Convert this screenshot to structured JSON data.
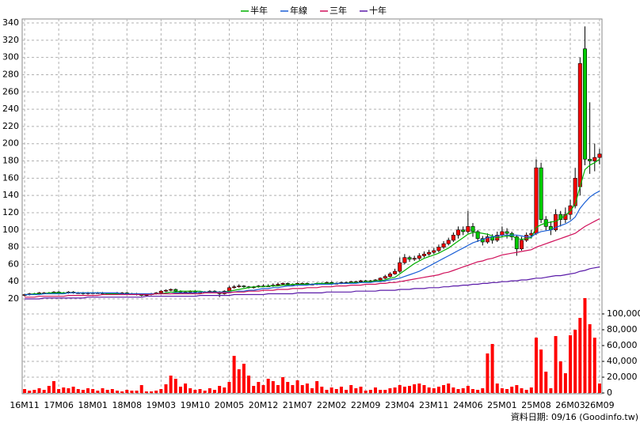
{
  "chart_data": {
    "type": "candlestick",
    "legend": "top",
    "grid": true,
    "note": "資料日期: 09/16 (Goodinfo.tw)",
    "up_color": "#ff0000",
    "down_color": "#00cc00",
    "ylim": [
      20,
      340
    ],
    "yticks": [
      20,
      40,
      60,
      80,
      100,
      120,
      140,
      160,
      180,
      200,
      220,
      240,
      260,
      280,
      300,
      320,
      340
    ],
    "categories": [
      "16M11",
      null,
      null,
      null,
      null,
      null,
      null,
      "17M06",
      null,
      null,
      null,
      null,
      null,
      null,
      "18M01",
      null,
      null,
      null,
      null,
      null,
      null,
      "18M08",
      null,
      null,
      null,
      null,
      null,
      null,
      "19M03",
      null,
      null,
      null,
      null,
      null,
      null,
      "19M10",
      null,
      null,
      null,
      null,
      null,
      null,
      "20M05",
      null,
      null,
      null,
      null,
      null,
      null,
      "20M12",
      null,
      null,
      null,
      null,
      null,
      null,
      "21M07",
      null,
      null,
      null,
      null,
      null,
      null,
      "22M02",
      null,
      null,
      null,
      null,
      null,
      null,
      "22M09",
      null,
      null,
      null,
      null,
      null,
      null,
      "23M04",
      null,
      null,
      null,
      null,
      null,
      null,
      "23M11",
      null,
      null,
      null,
      null,
      null,
      null,
      "24M06",
      null,
      null,
      null,
      null,
      null,
      null,
      "25M01",
      null,
      null,
      null,
      null,
      null,
      null,
      "25M08",
      null,
      null,
      null,
      null,
      null,
      null,
      "26M03",
      null,
      null,
      null,
      null,
      null,
      "26M09"
    ],
    "open": [
      24,
      25,
      26,
      26,
      27,
      27,
      27,
      28,
      27,
      27,
      28,
      27,
      27,
      26,
      27,
      27,
      27,
      26,
      26,
      26,
      27,
      27,
      26,
      26,
      25,
      24,
      25,
      26,
      27,
      29,
      30,
      31,
      29,
      28,
      28,
      29,
      28,
      28,
      28,
      29,
      28,
      26,
      29,
      33,
      34,
      35,
      34,
      33,
      34,
      35,
      35,
      35,
      36,
      37,
      38,
      37,
      37,
      38,
      38,
      37,
      37,
      38,
      38,
      39,
      38,
      38,
      39,
      39,
      40,
      40,
      41,
      40,
      41,
      42,
      44,
      46,
      49,
      52,
      62,
      68,
      66,
      67,
      70,
      72,
      74,
      76,
      80,
      84,
      88,
      94,
      100,
      98,
      104,
      98,
      90,
      86,
      92,
      88,
      94,
      98,
      96,
      92,
      78,
      88,
      94,
      96,
      172,
      112,
      104,
      100,
      118,
      112,
      118,
      128,
      150,
      310,
      182,
      180,
      184
    ],
    "high": [
      26,
      27,
      27,
      28,
      28,
      28,
      29,
      29,
      28,
      29,
      29,
      28,
      28,
      28,
      28,
      28,
      28,
      27,
      27,
      28,
      28,
      28,
      27,
      27,
      26,
      26,
      27,
      28,
      30,
      31,
      32,
      32,
      30,
      29,
      30,
      30,
      29,
      29,
      30,
      30,
      29,
      30,
      35,
      36,
      37,
      36,
      35,
      35,
      36,
      37,
      37,
      38,
      39,
      39,
      39,
      38,
      39,
      39,
      39,
      38,
      39,
      39,
      40,
      40,
      39,
      40,
      40,
      41,
      41,
      42,
      42,
      42,
      43,
      45,
      48,
      51,
      55,
      68,
      72,
      70,
      70,
      73,
      75,
      77,
      79,
      83,
      87,
      91,
      97,
      104,
      104,
      122,
      108,
      100,
      93,
      96,
      95,
      98,
      104,
      102,
      98,
      94,
      92,
      97,
      100,
      182,
      178,
      116,
      110,
      124,
      122,
      126,
      135,
      172,
      300,
      336,
      248,
      200,
      194
    ],
    "low": [
      23,
      24,
      25,
      25,
      26,
      26,
      26,
      26,
      26,
      26,
      26,
      26,
      25,
      25,
      26,
      26,
      25,
      25,
      25,
      25,
      26,
      25,
      25,
      24,
      23,
      23,
      24,
      25,
      26,
      28,
      29,
      28,
      27,
      27,
      27,
      27,
      27,
      27,
      27,
      27,
      22,
      25,
      28,
      32,
      33,
      33,
      32,
      32,
      33,
      34,
      34,
      34,
      35,
      36,
      36,
      36,
      36,
      37,
      36,
      36,
      36,
      37,
      37,
      37,
      37,
      37,
      38,
      38,
      39,
      39,
      39,
      39,
      40,
      41,
      43,
      45,
      48,
      50,
      60,
      63,
      64,
      65,
      68,
      70,
      72,
      74,
      78,
      82,
      86,
      90,
      94,
      96,
      92,
      86,
      82,
      84,
      84,
      86,
      92,
      90,
      88,
      70,
      76,
      86,
      90,
      94,
      108,
      100,
      94,
      98,
      104,
      108,
      112,
      125,
      140,
      175,
      165,
      168,
      176
    ],
    "close": [
      25,
      26,
      26,
      27,
      27,
      27,
      28,
      27,
      27,
      28,
      27,
      27,
      26,
      27,
      27,
      27,
      26,
      26,
      26,
      27,
      27,
      26,
      26,
      25,
      24,
      25,
      26,
      27,
      29,
      30,
      31,
      29,
      28,
      28,
      29,
      28,
      28,
      28,
      29,
      28,
      26,
      29,
      33,
      34,
      35,
      34,
      33,
      34,
      35,
      35,
      35,
      36,
      37,
      38,
      37,
      37,
      38,
      38,
      37,
      37,
      38,
      38,
      39,
      38,
      38,
      39,
      39,
      40,
      40,
      41,
      40,
      41,
      42,
      44,
      46,
      49,
      52,
      62,
      68,
      66,
      67,
      70,
      72,
      74,
      76,
      80,
      84,
      88,
      94,
      100,
      98,
      104,
      98,
      90,
      86,
      92,
      88,
      94,
      98,
      96,
      92,
      78,
      88,
      94,
      96,
      172,
      112,
      104,
      100,
      118,
      112,
      118,
      128,
      160,
      293,
      182,
      180,
      184,
      188
    ],
    "series": [
      {
        "name": "半年",
        "color": "#00b000",
        "values": [
          25,
          25,
          26,
          26,
          26,
          27,
          27,
          27,
          27,
          27,
          27,
          27,
          27,
          27,
          27,
          27,
          27,
          26,
          26,
          26,
          26,
          26,
          26,
          26,
          25,
          25,
          25,
          26,
          26,
          27,
          28,
          28,
          29,
          29,
          29,
          29,
          29,
          28,
          28,
          28,
          28,
          28,
          29,
          30,
          31,
          32,
          33,
          34,
          34,
          34,
          35,
          35,
          35,
          36,
          36,
          37,
          37,
          37,
          37,
          37,
          38,
          38,
          38,
          38,
          38,
          38,
          38,
          39,
          39,
          39,
          40,
          40,
          41,
          41,
          42,
          44,
          45,
          49,
          53,
          57,
          61,
          64,
          67,
          69,
          71,
          73,
          76,
          79,
          83,
          87,
          91,
          95,
          97,
          97,
          96,
          95,
          93,
          91,
          92,
          93,
          93,
          90,
          89,
          90,
          91,
          103,
          106,
          108,
          109,
          110,
          113,
          117,
          122,
          130,
          150,
          170,
          175,
          178,
          182
        ]
      },
      {
        "name": "年線",
        "color": "#1a5fd6",
        "values": [
          25,
          25,
          25,
          25,
          26,
          26,
          26,
          26,
          26,
          27,
          27,
          27,
          27,
          27,
          27,
          27,
          27,
          27,
          27,
          27,
          26,
          26,
          26,
          26,
          26,
          26,
          26,
          26,
          26,
          26,
          26,
          27,
          27,
          27,
          27,
          27,
          28,
          28,
          28,
          28,
          28,
          28,
          28,
          28,
          29,
          29,
          30,
          30,
          31,
          32,
          32,
          33,
          33,
          34,
          35,
          35,
          36,
          36,
          36,
          37,
          37,
          37,
          37,
          37,
          38,
          38,
          38,
          38,
          38,
          39,
          39,
          39,
          40,
          40,
          41,
          42,
          43,
          44,
          46,
          48,
          50,
          52,
          55,
          58,
          61,
          64,
          67,
          70,
          73,
          76,
          79,
          82,
          85,
          87,
          89,
          91,
          92,
          93,
          94,
          94,
          94,
          94,
          93,
          92,
          92,
          96,
          98,
          99,
          100,
          103,
          105,
          107,
          110,
          115,
          125,
          132,
          138,
          142,
          145
        ]
      },
      {
        "name": "三年",
        "color": "#d0105a",
        "values": [
          22,
          22,
          22,
          23,
          23,
          23,
          23,
          23,
          23,
          24,
          24,
          24,
          24,
          24,
          24,
          24,
          25,
          25,
          25,
          25,
          25,
          25,
          25,
          25,
          25,
          25,
          25,
          26,
          26,
          26,
          26,
          26,
          26,
          26,
          26,
          26,
          26,
          27,
          27,
          27,
          27,
          27,
          27,
          28,
          28,
          28,
          29,
          29,
          29,
          30,
          30,
          30,
          31,
          31,
          31,
          32,
          32,
          32,
          33,
          33,
          33,
          34,
          34,
          34,
          35,
          35,
          35,
          36,
          36,
          36,
          37,
          37,
          37,
          38,
          38,
          39,
          39,
          40,
          41,
          42,
          43,
          44,
          45,
          46,
          47,
          48,
          50,
          51,
          53,
          55,
          57,
          59,
          61,
          63,
          64,
          66,
          67,
          69,
          71,
          72,
          73,
          74,
          75,
          76,
          77,
          80,
          82,
          84,
          86,
          88,
          90,
          92,
          94,
          96,
          100,
          104,
          107,
          110,
          113
        ]
      },
      {
        "name": "十年",
        "color": "#5a1aa8",
        "values": [
          20,
          20,
          20,
          20,
          21,
          21,
          21,
          21,
          21,
          21,
          21,
          21,
          21,
          22,
          22,
          22,
          22,
          22,
          22,
          22,
          22,
          22,
          22,
          22,
          22,
          23,
          23,
          23,
          23,
          23,
          23,
          23,
          23,
          23,
          23,
          23,
          24,
          24,
          24,
          24,
          24,
          24,
          24,
          25,
          25,
          25,
          25,
          25,
          25,
          25,
          26,
          26,
          26,
          26,
          26,
          26,
          27,
          27,
          27,
          27,
          27,
          27,
          28,
          28,
          28,
          28,
          28,
          28,
          29,
          29,
          29,
          29,
          29,
          30,
          30,
          30,
          30,
          31,
          31,
          31,
          32,
          32,
          32,
          33,
          33,
          33,
          34,
          34,
          35,
          35,
          36,
          36,
          37,
          37,
          38,
          38,
          39,
          39,
          40,
          40,
          41,
          41,
          42,
          42,
          43,
          44,
          44,
          45,
          46,
          47,
          47,
          48,
          49,
          50,
          52,
          53,
          55,
          56,
          57
        ]
      }
    ],
    "volume": {
      "color": "#ff0000",
      "ylim": [
        0,
        120000
      ],
      "yticks": [
        0,
        {
          "value": 20000,
          "label": "20,000"
        },
        {
          "value": 40000,
          "label": "40,000"
        },
        {
          "value": 60000,
          "label": "60,000"
        },
        {
          "value": 80000,
          "label": "80,000"
        },
        {
          "value": 100000,
          "label": "100,000"
        }
      ],
      "values": [
        5000,
        3000,
        4000,
        6000,
        4000,
        9000,
        15000,
        5000,
        7000,
        6000,
        8000,
        5000,
        4000,
        6000,
        5000,
        3000,
        6000,
        4000,
        5000,
        3000,
        2000,
        4000,
        3000,
        3000,
        10000,
        2000,
        2000,
        3000,
        5000,
        11000,
        22000,
        18000,
        8000,
        12000,
        6000,
        4000,
        5000,
        3000,
        6000,
        4000,
        9000,
        7000,
        14000,
        47000,
        30000,
        37000,
        22000,
        9000,
        14000,
        10000,
        18000,
        15000,
        10000,
        20000,
        14000,
        10000,
        16000,
        10000,
        12000,
        6000,
        15000,
        8000,
        4000,
        7000,
        5000,
        8000,
        4000,
        10000,
        6000,
        8000,
        3000,
        4000,
        7000,
        4000,
        4000,
        6000,
        7000,
        10000,
        8000,
        9000,
        11000,
        12000,
        10000,
        7000,
        6000,
        8000,
        10000,
        12000,
        7000,
        5000,
        6000,
        9000,
        5000,
        4000,
        6000,
        50000,
        62000,
        12000,
        6000,
        5000,
        8000,
        10000,
        6000,
        4000,
        7000,
        70000,
        55000,
        27000,
        6000,
        72000,
        40000,
        25000,
        73000,
        80000,
        95000,
        120000,
        87000,
        70000,
        12000
      ]
    }
  }
}
